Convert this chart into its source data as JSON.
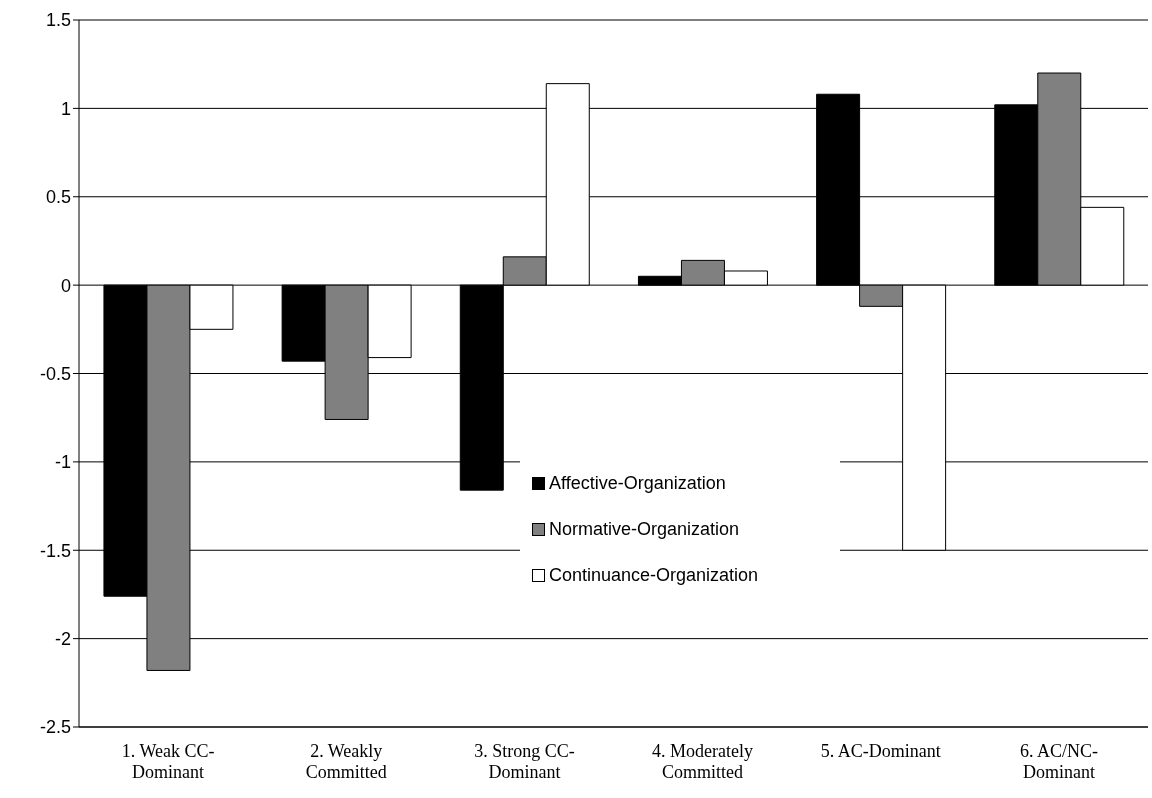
{
  "chart_data": {
    "type": "bar",
    "categories": [
      "1. Weak CC-Dominant",
      "2. Weakly Committed",
      "3. Strong CC-Dominant",
      "4. Moderately Committed",
      "5. AC-Dominant",
      "6. AC/NC-Dominant"
    ],
    "series": [
      {
        "name": "Affective-Organization",
        "color": "#000000",
        "values": [
          -1.76,
          -0.43,
          -1.16,
          0.05,
          1.08,
          1.02
        ]
      },
      {
        "name": "Normative-Organization",
        "color": "#808080",
        "values": [
          -2.18,
          -0.76,
          0.16,
          0.14,
          -0.12,
          1.2
        ]
      },
      {
        "name": "Continuance-Organization",
        "color": "#ffffff",
        "values": [
          -0.25,
          -0.41,
          1.14,
          0.08,
          -1.5,
          0.44
        ]
      }
    ],
    "ylim": [
      -2.5,
      1.5
    ],
    "yticks": [
      -2.5,
      -2,
      -1.5,
      -1,
      -0.5,
      0,
      0.5,
      1,
      1.5
    ],
    "grid": "y",
    "legend": "bottom"
  }
}
